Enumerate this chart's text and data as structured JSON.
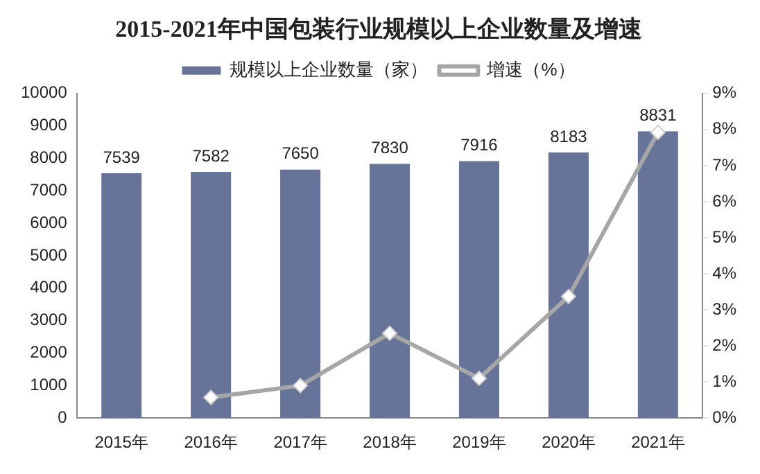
{
  "chart_data": {
    "type": "bar",
    "title": "2015-2021年中国包装行业规模以上企业数量及增速",
    "categories": [
      "2015年",
      "2016年",
      "2017年",
      "2018年",
      "2019年",
      "2020年",
      "2021年"
    ],
    "series": [
      {
        "name": "规模以上企业数量（家）",
        "color": "#67749a",
        "values": [
          7539,
          7582,
          7650,
          7830,
          7916,
          8183,
          8831
        ],
        "value_labels": [
          "7539",
          "7582",
          "7650",
          "7830",
          "7916",
          "8183",
          "8831"
        ]
      },
      {
        "name": "增速（%）",
        "type": "line",
        "axis": "y2",
        "color": "#a6a6a6",
        "values": [
          null,
          0.57,
          0.9,
          2.35,
          1.1,
          3.37,
          7.92
        ]
      }
    ],
    "ylim": [
      0,
      10000
    ],
    "yticks": [
      0,
      1000,
      2000,
      3000,
      4000,
      5000,
      6000,
      7000,
      8000,
      9000,
      10000
    ],
    "y2lim": [
      0,
      9
    ],
    "y2ticks": [
      {
        "value": 0,
        "label": "0%"
      },
      {
        "value": 1,
        "label": "1%"
      },
      {
        "value": 2,
        "label": "2%"
      },
      {
        "value": 3,
        "label": "3%"
      },
      {
        "value": 4,
        "label": "4%"
      },
      {
        "value": 5,
        "label": "5%"
      },
      {
        "value": 6,
        "label": "6%"
      },
      {
        "value": 7,
        "label": "7%"
      },
      {
        "value": 8,
        "label": "8%"
      },
      {
        "value": 9,
        "label": "9%"
      }
    ],
    "legend": "top",
    "marker": "diamond",
    "grid": false
  }
}
